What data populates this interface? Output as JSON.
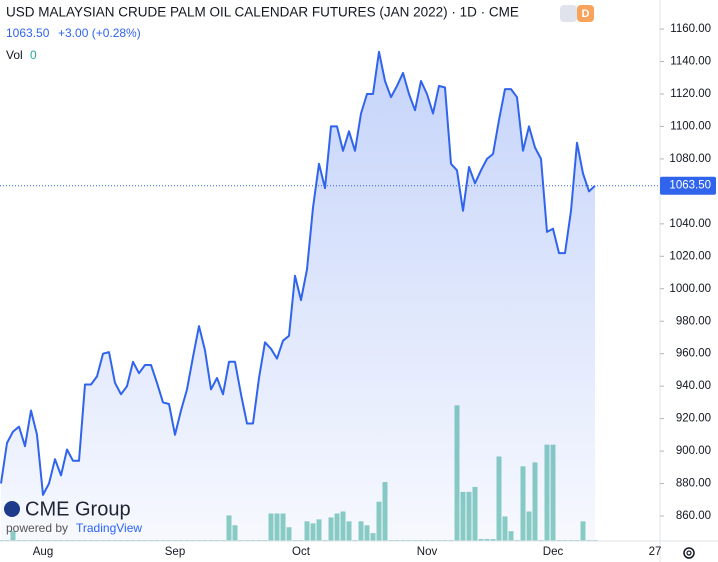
{
  "chart_data": {
    "type": "line",
    "title": "USD MALAYSIAN CRUDE PALM OIL CALENDAR FUTURES (JAN 2022) · 1D · CME",
    "badge": "D",
    "change": "+3.00 (+0.28%)",
    "volume_label": "Vol",
    "volume_value": 0,
    "last_price": {
      "value": 1063.5,
      "label": "1063.50"
    },
    "logo": {
      "name": "CME Group",
      "powered_by": "powered by",
      "provider": "TradingView"
    },
    "categories": [
      null,
      null,
      null,
      null,
      null,
      null,
      null,
      "Aug",
      null,
      null,
      null,
      null,
      null,
      null,
      null,
      null,
      null,
      null,
      null,
      null,
      null,
      null,
      null,
      null,
      null,
      null,
      null,
      null,
      null,
      "Sep",
      null,
      null,
      null,
      null,
      null,
      null,
      null,
      null,
      null,
      null,
      null,
      null,
      null,
      null,
      null,
      null,
      null,
      null,
      null,
      null,
      "Oct",
      null,
      null,
      null,
      null,
      null,
      null,
      null,
      null,
      null,
      null,
      null,
      null,
      null,
      null,
      null,
      null,
      null,
      null,
      null,
      null,
      "Nov",
      null,
      null,
      null,
      null,
      null,
      null,
      null,
      null,
      null,
      null,
      null,
      null,
      null,
      null,
      null,
      null,
      null,
      null,
      null,
      null,
      "Dec",
      null,
      null,
      null,
      null,
      null,
      null,
      null,
      null,
      null,
      null,
      null,
      null,
      null,
      null,
      null,
      null,
      "27"
    ],
    "series": [
      {
        "name": "Price",
        "color": "#3164ec",
        "values": [
          880,
          905,
          912,
          915,
          903,
          925,
          910,
          873,
          880,
          895,
          885,
          901,
          894,
          894,
          941,
          941,
          946,
          960,
          961,
          942,
          935,
          940,
          955,
          948,
          953,
          953,
          942,
          930,
          929,
          910,
          925,
          938,
          958,
          977,
          962,
          938,
          945,
          935,
          955,
          955,
          935,
          917,
          917,
          945,
          967,
          963,
          957,
          968,
          971,
          1008,
          993,
          1012,
          1050,
          1077,
          1062,
          1100,
          1100,
          1085,
          1097,
          1085,
          1108,
          1120,
          1120,
          1146,
          1128,
          1118,
          1125,
          1133,
          1120,
          1110,
          1128,
          1120,
          1108,
          1125,
          1124,
          1077,
          1073,
          1048,
          1075,
          1065,
          1073,
          1080,
          1083,
          1104,
          1123,
          1123,
          1118,
          1085,
          1100,
          1087,
          1080,
          1035,
          1037,
          1022,
          1022,
          1048,
          1090,
          1071,
          1060,
          1063.5,
          null,
          null,
          null,
          null,
          null,
          null,
          null,
          null,
          null,
          null
        ]
      },
      {
        "name": "Vol",
        "color": "#8ccfc2",
        "kind": "volume",
        "values": [
          1,
          1,
          10,
          1,
          1,
          1,
          1,
          1,
          1,
          1,
          1,
          1,
          1,
          1,
          1,
          1,
          1,
          1,
          1,
          1,
          1,
          1,
          1,
          1,
          1,
          1,
          1,
          1,
          1,
          1,
          1,
          1,
          1,
          1,
          1,
          1,
          1,
          1,
          26,
          16,
          1,
          1,
          1,
          1,
          1,
          28,
          28,
          28,
          14,
          1,
          1,
          20,
          18,
          22,
          1,
          24,
          28,
          30,
          20,
          1,
          20,
          16,
          8,
          40,
          60,
          1,
          1,
          1,
          1,
          1,
          1,
          1,
          1,
          1,
          1,
          1,
          138,
          50,
          50,
          55,
          2,
          2,
          2,
          86,
          25,
          10,
          1,
          76,
          30,
          80,
          1,
          98,
          98,
          1,
          1,
          1,
          1,
          20,
          1,
          1,
          null,
          null,
          null,
          null,
          null,
          null,
          null,
          null,
          null,
          null
        ]
      }
    ],
    "vlim": [
      0,
      300
    ],
    "ylim": [
      844.6,
      1177.9
    ],
    "yticks": [
      {
        "value": 860,
        "label": "860.00"
      },
      {
        "value": 880,
        "label": "880.00"
      },
      {
        "value": 900,
        "label": "900.00"
      },
      {
        "value": 920,
        "label": "920.00"
      },
      {
        "value": 940,
        "label": "940.00"
      },
      {
        "value": 960,
        "label": "960.00"
      },
      {
        "value": 980,
        "label": "980.00"
      },
      {
        "value": 1000,
        "label": "1000.00"
      },
      {
        "value": 1020,
        "label": "1020.00"
      },
      {
        "value": 1040,
        "label": "1040.00"
      },
      {
        "value": 1060,
        "label": "1060.00"
      },
      {
        "value": 1080,
        "label": "1080.00"
      },
      {
        "value": 1100,
        "label": "1100.00"
      },
      {
        "value": 1120,
        "label": "1120.00"
      },
      {
        "value": 1140,
        "label": "1140.00"
      },
      {
        "value": 1160,
        "label": "1160.00"
      }
    ],
    "grid": false
  }
}
